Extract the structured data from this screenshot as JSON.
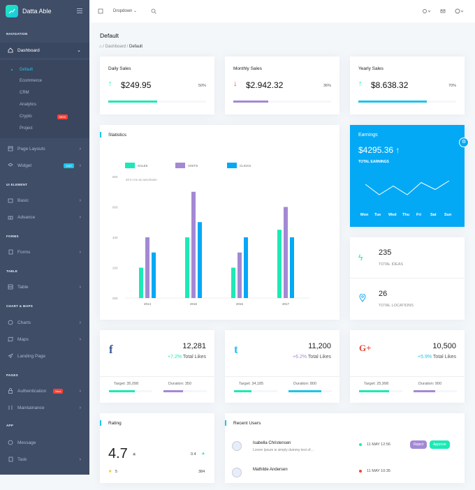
{
  "app": {
    "name": "Datta Able"
  },
  "sidebar": {
    "captions": {
      "navigation": "NAVIGATION",
      "ui_element": "UI ELEMENT",
      "forms": "FORMS",
      "table": "TABLE",
      "chart_maps": "CHART & MAPS",
      "pages": "PAGES",
      "app": "APP"
    },
    "dashboard": "Dashboard",
    "subitems": [
      "Default",
      "Ecommerce",
      "CRM",
      "Analytics",
      "Crypto",
      "Project"
    ],
    "crypto_badge": "NEW",
    "items": {
      "page_layouts": "Page Layouts",
      "widget": "Widget",
      "widget_badge": "100+",
      "basic": "Basic",
      "advance": "Advance",
      "forms": "Forms",
      "table": "Table",
      "charts": "Charts",
      "maps": "Maps",
      "landing": "Landing Page",
      "authentication": "Authentication",
      "auth_badge": "New",
      "maintainance": "Maintainance",
      "message": "Message",
      "task": "Task"
    },
    "colors": {
      "bg": "#3f4d67",
      "accent": "#1dc4e9",
      "badge_red": "#f44236"
    }
  },
  "topbar": {
    "dropdown": "Dropdown"
  },
  "page": {
    "title": "Default",
    "crumb_dashboard": "Dashboard",
    "crumb_default": "Default"
  },
  "sales": [
    {
      "title": "Daily Sales",
      "amount": "$249.95",
      "pct": "50%",
      "progress": 0.5,
      "trend": "up",
      "color": "#1de9b6"
    },
    {
      "title": "Monthly Sales",
      "amount": "$2.942.32",
      "pct": "36%",
      "progress": 0.36,
      "trend": "down",
      "color": "#a389d4"
    },
    {
      "title": "Yearly Sales",
      "amount": "$8.638.32",
      "pct": "70%",
      "progress": 0.7,
      "trend": "up",
      "color": "#1dc4e9"
    }
  ],
  "statistics": {
    "title": "Statistics",
    "note": "20 in ms as anschaine"
  },
  "chart_data": {
    "type": "bar",
    "categories": [
      "2014",
      "2015",
      "2016",
      "2017"
    ],
    "series": [
      {
        "name": "SALES",
        "color": "#1de9b6",
        "values": [
          200,
          400,
          200,
          450
        ]
      },
      {
        "name": "VISITS",
        "color": "#a389d4",
        "values": [
          400,
          700,
          300,
          600
        ]
      },
      {
        "name": "CLICKS",
        "color": "#04a9f5",
        "values": [
          300,
          500,
          400,
          400
        ]
      }
    ],
    "yticks": [
      "800",
      "600",
      "400",
      "200",
      "000"
    ],
    "ylim": [
      0,
      800
    ],
    "legend": "top"
  },
  "earnings": {
    "title": "Earnings",
    "amount": "$4295.36",
    "label": "TOTAL EARNINGS",
    "days": [
      "Mon",
      "Tue",
      "Wed",
      "Thu",
      "Fri",
      "Sat",
      "Sun"
    ],
    "values": [
      50,
      20,
      45,
      20,
      55,
      35,
      60
    ],
    "color": "#04a9f5"
  },
  "ideas": {
    "value": "235",
    "label": "TOTAL IDEAS"
  },
  "locations": {
    "value": "26",
    "label": "TOTAL LOCATIONS"
  },
  "social": [
    {
      "name": "facebook",
      "glyph": "f",
      "value": "12,281",
      "change": "+7.2%",
      "suffix": "Total Likes",
      "target": "Target: 35,098",
      "duration": "Duration: 350",
      "tp": 0.6,
      "dp": 0.45,
      "tcolor": "#1de9b6",
      "dcolor": "#a389d4",
      "icolor": "#3b5998",
      "ccolor": "#1de9b6"
    },
    {
      "name": "twitter",
      "glyph": "t",
      "value": "11,200",
      "change": "+6.2%",
      "suffix": "Total Likes",
      "target": "Target: 34,185",
      "duration": "Duration: 800",
      "tp": 0.4,
      "dp": 0.75,
      "tcolor": "#1de9b6",
      "dcolor": "#1dc4e9",
      "icolor": "#1dc4e9",
      "ccolor": "#a389d4"
    },
    {
      "name": "google-plus",
      "glyph": "G+",
      "value": "10,500",
      "change": "+5.9%",
      "suffix": "Total Likes",
      "target": "Target: 25,998",
      "duration": "Duration: 900",
      "tp": 0.7,
      "dp": 0.5,
      "tcolor": "#1de9b6",
      "dcolor": "#a389d4",
      "icolor": "#dd4b39",
      "ccolor": "#1dc4e9"
    }
  ],
  "rating": {
    "title": "Rating",
    "score": "4.7",
    "star_count": "5",
    "r1": "0.4",
    "r2": "384"
  },
  "recent": {
    "title": "Recent Users",
    "users": [
      {
        "name": "Isabella Christensen",
        "desc": "Lorem Ipsum is simply dummy text of…",
        "date": "11 MAY 12:56",
        "reject": "Reject",
        "approve": "Approve",
        "dot": "#1de9b6"
      },
      {
        "name": "Mathilde Andersen",
        "desc": "",
        "date": "11 MAY 10:35",
        "dot": "#f44236"
      }
    ]
  }
}
